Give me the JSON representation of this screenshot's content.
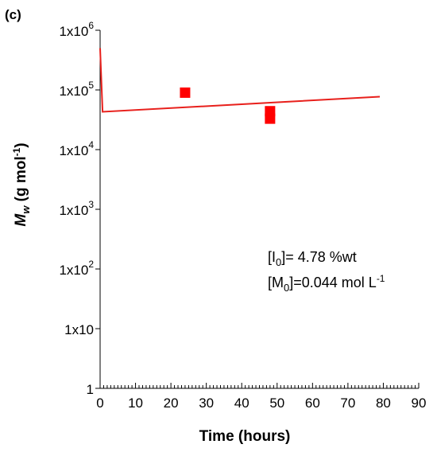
{
  "chart_data": {
    "type": "scatter",
    "panel_label": "(c)",
    "xlabel": "Time (hours)",
    "ylabel": {
      "main": "M",
      "sub": "w",
      "unit_pre": " (g mol",
      "unit_sup": "-1",
      "unit_post": ")"
    },
    "xlim": [
      0,
      90
    ],
    "ylim": [
      1,
      1000000
    ],
    "yscale": "log",
    "x_ticks": [
      0,
      10,
      20,
      30,
      40,
      50,
      60,
      70,
      80,
      90
    ],
    "x_tick_labels": [
      "0",
      "10",
      "20",
      "30",
      "40",
      "50",
      "60",
      "70",
      "80",
      "90"
    ],
    "y_ticks": [
      {
        "value": 1000000,
        "base": "1x10",
        "exp": "6"
      },
      {
        "value": 100000,
        "base": "1x10",
        "exp": "5"
      },
      {
        "value": 10000,
        "base": "1x10",
        "exp": "4"
      },
      {
        "value": 1000,
        "base": "1x10",
        "exp": "3"
      },
      {
        "value": 100,
        "base": "1x10",
        "exp": "2"
      },
      {
        "value": 10,
        "base": "1x10",
        "exp": ""
      },
      {
        "value": 1,
        "base": "1",
        "exp": ""
      }
    ],
    "grid": false,
    "series": [
      {
        "kind": "markers",
        "marker": "square",
        "color": "#ff0000",
        "points": [
          {
            "x": 24,
            "y": 90000
          },
          {
            "x": 48,
            "y": 44000
          },
          {
            "x": 48,
            "y": 33000
          }
        ]
      },
      {
        "kind": "line",
        "color": "#e8201c",
        "points": [
          {
            "x": 0,
            "y": 500000
          },
          {
            "x": 0.7,
            "y": 43000
          },
          {
            "x": 79,
            "y": 77000
          }
        ]
      }
    ],
    "annotations": [
      {
        "lines": [
          {
            "pre": "[I",
            "sub": "0",
            "post": "]= 4.78 %wt",
            "sup": ""
          },
          {
            "pre": "[M",
            "sub": "0",
            "post": "]=0.044 mol L",
            "sup": "-1"
          }
        ]
      }
    ]
  }
}
